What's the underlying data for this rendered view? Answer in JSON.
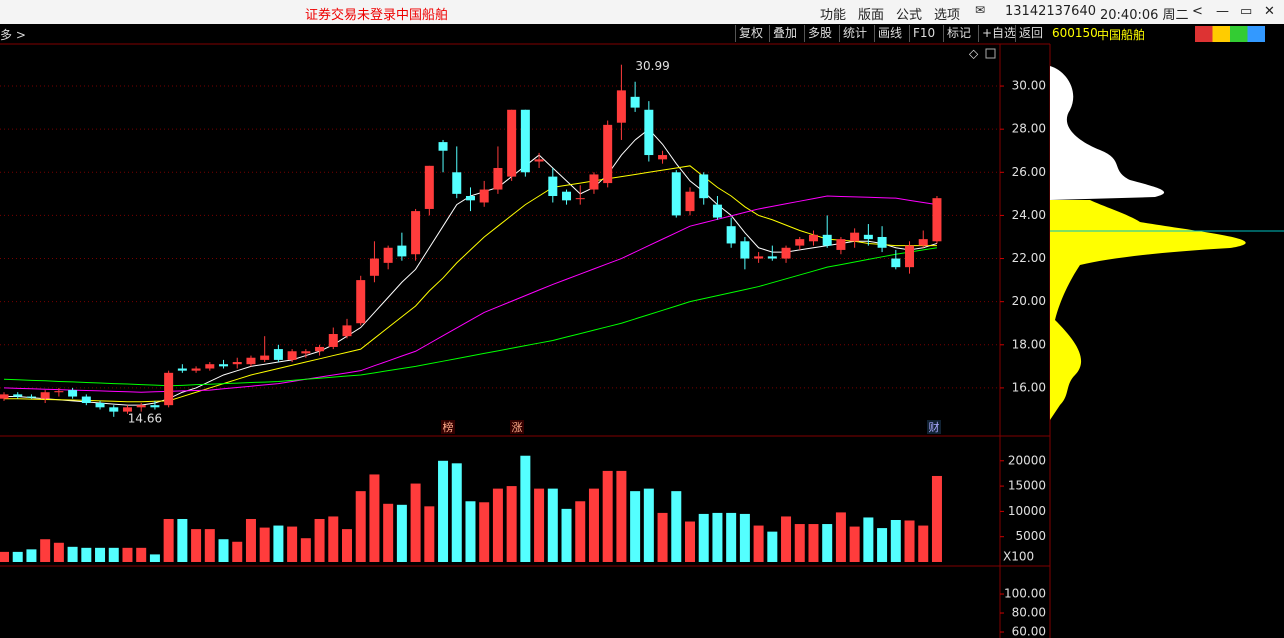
{
  "header": {
    "notice": "证券交易未登录",
    "stock": "中国船舶",
    "menu": [
      "功能",
      "版面",
      "公式",
      "选项"
    ],
    "phone": "13142137640",
    "time": "20:40:06 周二"
  },
  "toolbar": {
    "left": "多 >",
    "buttons": [
      "复权",
      "叠加",
      "多股",
      "统计",
      "画线",
      "F10",
      "标记",
      "+自选",
      "返回"
    ],
    "code": "600150",
    "name": "中国船舶"
  },
  "markers": [
    "榜",
    "涨",
    "财"
  ],
  "chart_data": [
    {
      "type": "candlestick",
      "up_color": "#ff3c3c",
      "down_color": "#54ffff",
      "grid": true,
      "ylim": [
        13.77,
        31.95
      ],
      "yticks": [
        {
          "value": 16,
          "label": "16.00"
        },
        {
          "value": 18,
          "label": "18.00"
        },
        {
          "value": 20,
          "label": "20.00"
        },
        {
          "value": 22,
          "label": "22.00"
        },
        {
          "value": 24,
          "label": "24.00"
        },
        {
          "value": 26,
          "label": "26.00"
        },
        {
          "value": 28,
          "label": "28.00"
        },
        {
          "value": 30,
          "label": "30.00"
        }
      ],
      "ohlc": [
        [
          15.5,
          15.8,
          15.4,
          15.7
        ],
        [
          15.7,
          15.8,
          15.5,
          15.6
        ],
        [
          15.6,
          15.7,
          15.5,
          15.55
        ],
        [
          15.5,
          15.9,
          15.3,
          15.8
        ],
        [
          15.8,
          16.0,
          15.6,
          15.85
        ],
        [
          15.9,
          16.0,
          15.5,
          15.6
        ],
        [
          15.6,
          15.7,
          15.2,
          15.3
        ],
        [
          15.3,
          15.4,
          15.0,
          15.1
        ],
        [
          15.1,
          15.2,
          14.66,
          14.9
        ],
        [
          14.9,
          15.2,
          14.8,
          15.1
        ],
        [
          15.1,
          15.3,
          14.9,
          15.2
        ],
        [
          15.2,
          15.4,
          15.0,
          15.1
        ],
        [
          15.2,
          16.8,
          15.1,
          16.7
        ],
        [
          16.9,
          17.1,
          16.7,
          16.8
        ],
        [
          16.8,
          17.0,
          16.7,
          16.9
        ],
        [
          16.9,
          17.2,
          16.8,
          17.1
        ],
        [
          17.1,
          17.3,
          16.9,
          17.0
        ],
        [
          17.1,
          17.4,
          16.9,
          17.2
        ],
        [
          17.1,
          17.5,
          17.0,
          17.4
        ],
        [
          17.3,
          18.4,
          17.2,
          17.5
        ],
        [
          17.8,
          18.0,
          17.2,
          17.3
        ],
        [
          17.3,
          17.8,
          17.2,
          17.7
        ],
        [
          17.6,
          17.8,
          17.4,
          17.7
        ],
        [
          17.7,
          18.0,
          17.5,
          17.9
        ],
        [
          17.9,
          18.8,
          17.8,
          18.5
        ],
        [
          18.4,
          19.2,
          18.3,
          18.9
        ],
        [
          19.0,
          21.2,
          18.9,
          21.0
        ],
        [
          21.2,
          22.8,
          20.9,
          22.0
        ],
        [
          21.8,
          22.6,
          21.5,
          22.5
        ],
        [
          22.6,
          23.2,
          21.9,
          22.1
        ],
        [
          22.2,
          24.3,
          21.9,
          24.2
        ],
        [
          24.3,
          26.3,
          24.0,
          26.3
        ],
        [
          27.4,
          27.5,
          26.0,
          27.0
        ],
        [
          26.0,
          27.2,
          24.8,
          25.0
        ],
        [
          24.9,
          25.3,
          24.2,
          24.7
        ],
        [
          24.6,
          25.6,
          24.4,
          25.2
        ],
        [
          25.2,
          27.2,
          25.0,
          26.2
        ],
        [
          25.8,
          28.9,
          25.6,
          28.9
        ],
        [
          28.9,
          28.9,
          25.8,
          26.0
        ],
        [
          26.5,
          26.9,
          26.2,
          26.6
        ],
        [
          25.8,
          26.2,
          24.6,
          24.9
        ],
        [
          25.1,
          25.2,
          24.5,
          24.7
        ],
        [
          24.8,
          25.4,
          24.5,
          24.8
        ],
        [
          25.2,
          26.0,
          25.0,
          25.9
        ],
        [
          25.5,
          28.4,
          25.3,
          28.2
        ],
        [
          28.3,
          30.99,
          27.5,
          29.8
        ],
        [
          29.5,
          30.2,
          28.8,
          29.0
        ],
        [
          28.9,
          29.3,
          26.5,
          26.8
        ],
        [
          26.6,
          27.0,
          26.4,
          26.8
        ],
        [
          26.0,
          26.1,
          23.9,
          24.0
        ],
        [
          24.2,
          25.3,
          24.0,
          25.1
        ],
        [
          25.9,
          26.0,
          24.5,
          24.8
        ],
        [
          24.5,
          24.9,
          23.8,
          23.9
        ],
        [
          23.5,
          23.9,
          22.5,
          22.7
        ],
        [
          22.8,
          23.0,
          21.5,
          22.0
        ],
        [
          22.0,
          22.3,
          21.8,
          22.1
        ],
        [
          22.1,
          22.6,
          21.9,
          22.0
        ],
        [
          22.0,
          22.6,
          21.8,
          22.5
        ],
        [
          22.6,
          23.0,
          22.4,
          22.9
        ],
        [
          22.8,
          23.3,
          22.6,
          23.1
        ],
        [
          23.1,
          24.0,
          22.5,
          22.6
        ],
        [
          22.4,
          23.0,
          22.2,
          22.9
        ],
        [
          22.8,
          23.4,
          22.5,
          23.2
        ],
        [
          23.1,
          23.6,
          22.6,
          22.9
        ],
        [
          23.0,
          23.5,
          22.3,
          22.5
        ],
        [
          22.0,
          22.4,
          21.5,
          21.6
        ],
        [
          21.6,
          22.8,
          21.3,
          22.6
        ],
        [
          22.6,
          23.3,
          22.5,
          22.9
        ],
        [
          22.8,
          24.9,
          22.7,
          24.8
        ]
      ],
      "series": [
        {
          "color": "#ffffff",
          "values": [
            15.6,
            15.6,
            15.55,
            15.5,
            15.45,
            15.4,
            15.35,
            15.3,
            15.25,
            15.2,
            15.2,
            15.3,
            15.5,
            15.8,
            16.0,
            16.3,
            16.6,
            16.8,
            17.0,
            17.1,
            17.2,
            17.3,
            17.5,
            17.7,
            18.0,
            18.4,
            18.8,
            19.5,
            20.2,
            20.9,
            21.5,
            22.5,
            23.5,
            24.5,
            24.9,
            25.1,
            25.3,
            25.8,
            26.3,
            26.8,
            26.2,
            25.6,
            25.0,
            25.3,
            25.9,
            26.8,
            27.5,
            28.0,
            27.3,
            26.4,
            25.6,
            25.1,
            24.5,
            24.0,
            23.2,
            22.5,
            22.3,
            22.3,
            22.4,
            22.5,
            22.6,
            22.7,
            22.8,
            22.8,
            22.7,
            22.5,
            22.4,
            22.5,
            22.7
          ]
        },
        {
          "color": "#ffff00",
          "values": [
            15.5,
            15.5,
            15.48,
            15.46,
            15.45,
            15.44,
            15.42,
            15.4,
            15.38,
            15.36,
            15.36,
            15.38,
            15.4,
            15.6,
            15.8,
            16.0,
            16.2,
            16.4,
            16.6,
            16.75,
            16.9,
            17.05,
            17.2,
            17.35,
            17.5,
            17.65,
            17.8,
            18.3,
            18.8,
            19.3,
            19.8,
            20.5,
            21.1,
            21.8,
            22.4,
            23.0,
            23.5,
            24.0,
            24.5,
            24.9,
            25.3,
            25.4,
            25.5,
            25.6,
            25.7,
            25.8,
            25.9,
            26.0,
            26.1,
            26.2,
            26.3,
            25.8,
            25.3,
            24.9,
            24.4,
            24.0,
            23.8,
            23.55,
            23.3,
            23.1,
            22.9,
            22.85,
            22.8,
            22.7,
            22.65,
            22.6,
            22.6,
            22.6,
            22.6
          ]
        },
        {
          "color": "#ff00ff",
          "values": [
            16.0,
            15.98,
            15.96,
            15.94,
            15.92,
            15.9,
            15.88,
            15.86,
            15.84,
            15.82,
            15.8,
            15.82,
            15.84,
            15.86,
            15.88,
            15.9,
            15.96,
            16.02,
            16.08,
            16.14,
            16.2,
            16.3,
            16.4,
            16.5,
            16.6,
            16.7,
            16.8,
            17.03,
            17.25,
            17.48,
            17.7,
            18.06,
            18.42,
            18.78,
            19.14,
            19.5,
            19.76,
            20.02,
            20.28,
            20.54,
            20.8,
            21.04,
            21.28,
            21.52,
            21.76,
            22.0,
            22.3,
            22.6,
            22.9,
            23.2,
            23.5,
            23.66,
            23.82,
            23.98,
            24.14,
            24.3,
            24.42,
            24.54,
            24.66,
            24.78,
            24.9,
            24.88,
            24.86,
            24.84,
            24.82,
            24.8,
            24.7,
            24.6,
            24.5
          ]
        },
        {
          "color": "#00ff00",
          "values": [
            16.4,
            16.38,
            16.35,
            16.33,
            16.3,
            16.28,
            16.25,
            16.23,
            16.2,
            16.18,
            16.15,
            16.13,
            16.1,
            16.12,
            16.15,
            16.17,
            16.2,
            16.22,
            16.25,
            16.27,
            16.3,
            16.35,
            16.4,
            16.45,
            16.5,
            16.55,
            16.6,
            16.7,
            16.8,
            16.9,
            17.0,
            17.12,
            17.24,
            17.36,
            17.48,
            17.6,
            17.72,
            17.84,
            17.96,
            18.08,
            18.2,
            18.36,
            18.52,
            18.68,
            18.84,
            19.0,
            19.2,
            19.4,
            19.6,
            19.8,
            20.0,
            20.14,
            20.28,
            20.42,
            20.56,
            20.7,
            20.88,
            21.06,
            21.24,
            21.42,
            21.6,
            21.72,
            21.84,
            21.96,
            22.08,
            22.2,
            22.3,
            22.4,
            22.5
          ]
        }
      ]
    },
    {
      "type": "bar",
      "up_color": "#ff3c3c",
      "down_color": "#54ffff",
      "unit": "X100",
      "ylim": [
        0,
        24700
      ],
      "yticks": [
        5000,
        10000,
        15000,
        20000
      ],
      "values": [
        2000,
        2000,
        2500,
        4500,
        3800,
        3000,
        2800,
        2800,
        2800,
        2800,
        2800,
        1500,
        8500,
        8500,
        6500,
        6500,
        4500,
        4000,
        8500,
        6800,
        7200,
        7000,
        4700,
        8500,
        9000,
        6500,
        14000,
        17300,
        11500,
        11300,
        15500,
        11000,
        20000,
        19500,
        12000,
        11800,
        14500,
        15000,
        21000,
        14500,
        14500,
        10500,
        12000,
        14500,
        18000,
        18000,
        14000,
        14500,
        9700,
        14000,
        8000,
        9500,
        9700,
        9700,
        9500,
        7200,
        6000,
        9000,
        7500,
        7500,
        7500,
        9800,
        7000,
        8800,
        6700,
        8300,
        8200,
        7200,
        17000
      ]
    },
    {
      "type": "line",
      "ylim": [
        53.7,
        127.4
      ],
      "yticks": [
        {
          "value": 60,
          "label": "60.00"
        },
        {
          "value": 80,
          "label": "80.00"
        },
        {
          "value": 100,
          "label": "100.00"
        }
      ]
    }
  ]
}
